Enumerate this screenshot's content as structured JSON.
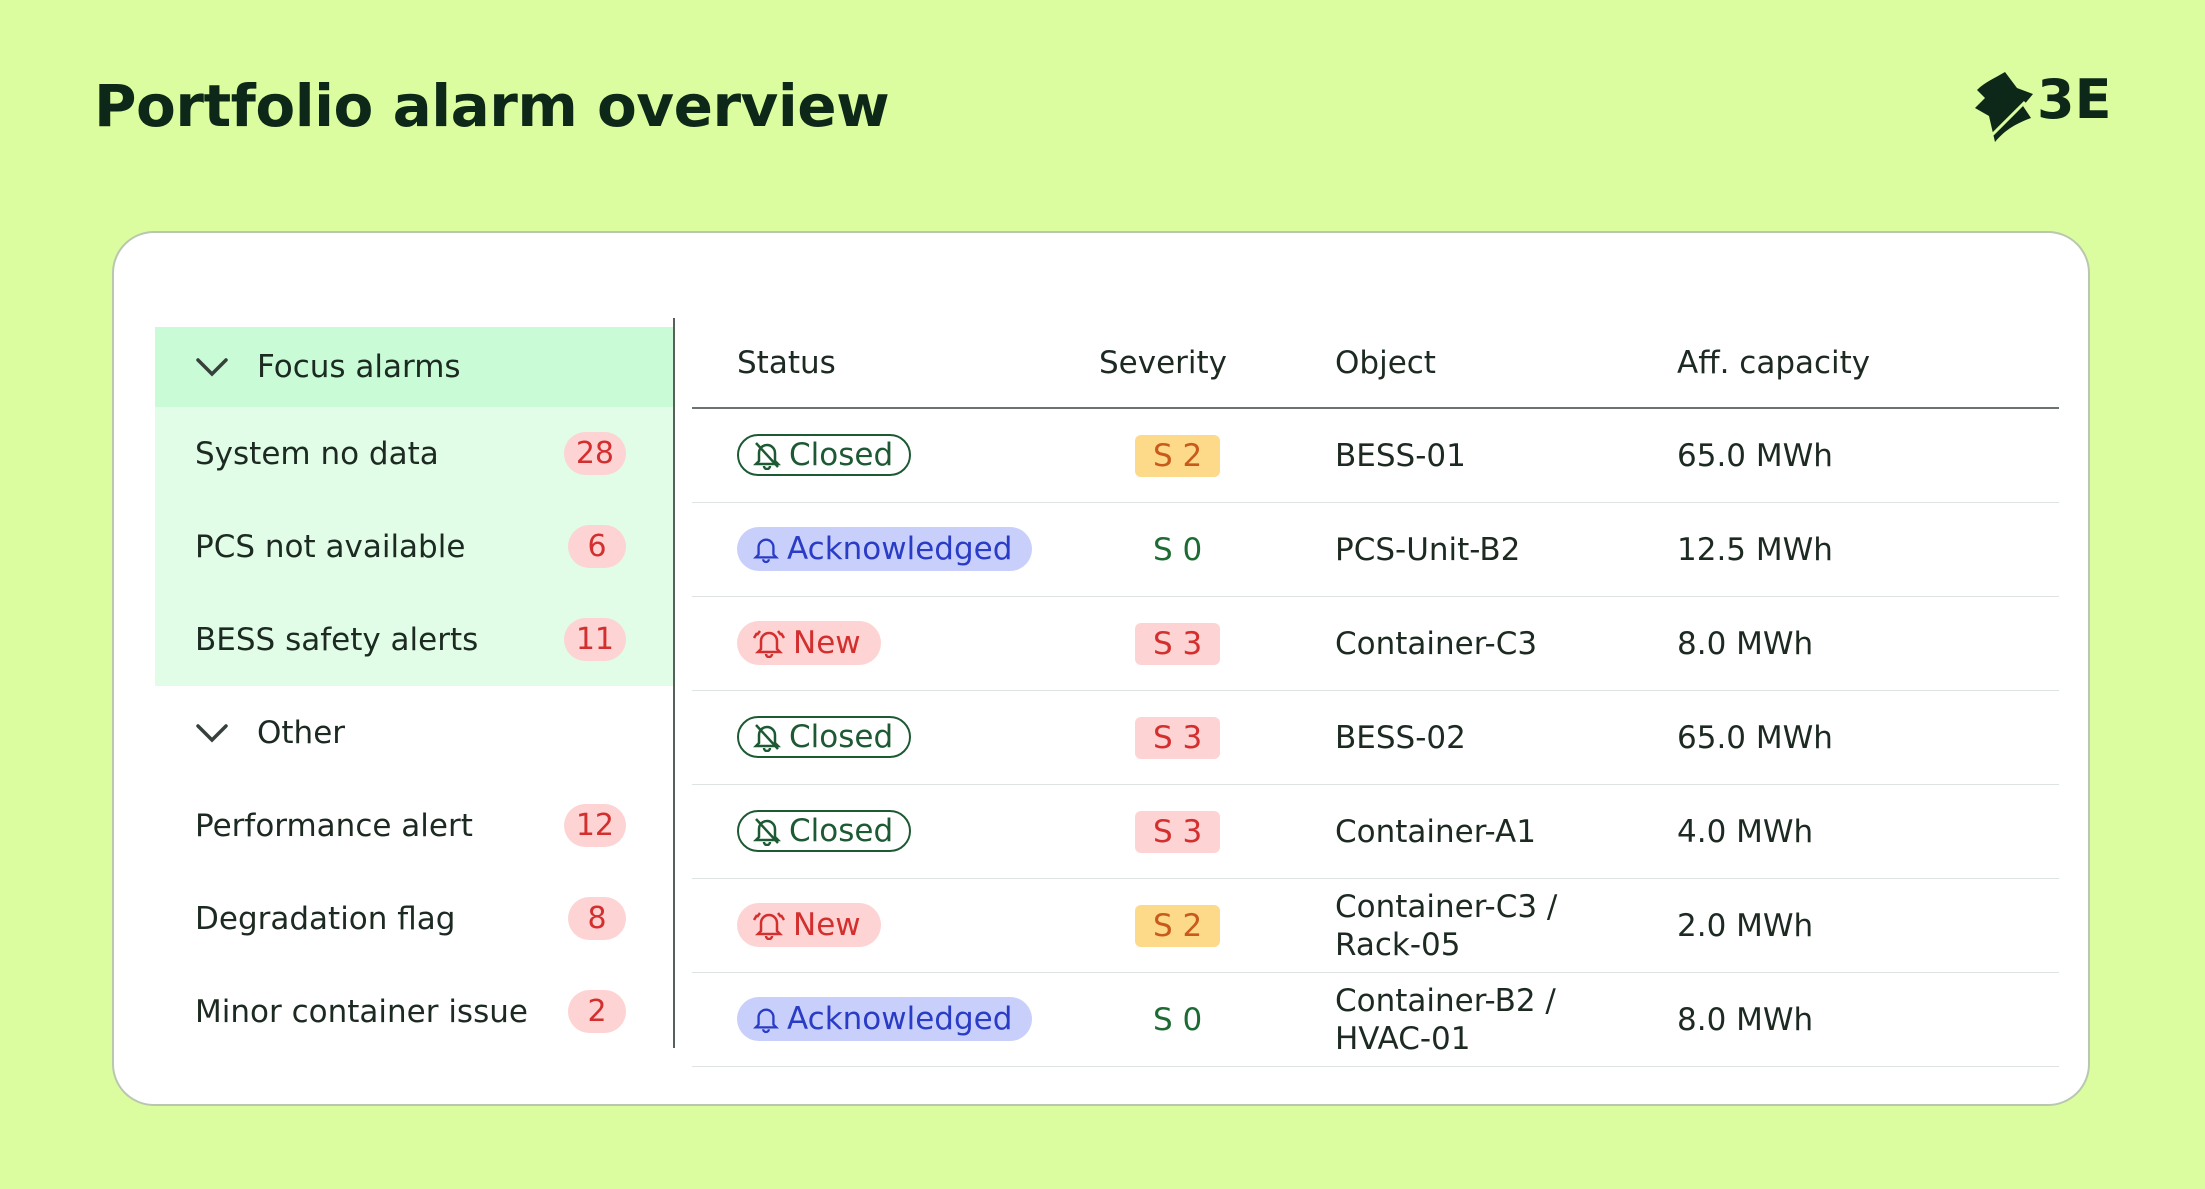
{
  "header": {
    "title": "Portfolio alarm overview",
    "logo": "3E"
  },
  "sidebar": {
    "groups": [
      {
        "label": "Focus alarms",
        "items": [
          {
            "label": "System no data",
            "count": 28
          },
          {
            "label": "PCS not available",
            "count": 6
          },
          {
            "label": "BESS safety alerts",
            "count": 11
          }
        ]
      },
      {
        "label": "Other",
        "items": [
          {
            "label": "Performance alert",
            "count": 12
          },
          {
            "label": "Degradation flag",
            "count": 8
          },
          {
            "label": "Minor container issue",
            "count": 2
          }
        ]
      }
    ]
  },
  "table": {
    "columns": [
      "Status",
      "Severity",
      "Object",
      "Aff. capacity"
    ],
    "rows": [
      [
        "Closed",
        "S 2",
        "BESS-01",
        "65.0 MWh"
      ],
      [
        "Acknowledged",
        "S 0",
        "PCS-Unit-B2",
        "12.5 MWh"
      ],
      [
        "New",
        "S 3",
        "Container-C3",
        "8.0 MWh"
      ],
      [
        "Closed",
        "S 3",
        "BESS-02",
        "65.0 MWh"
      ],
      [
        "Closed",
        "S 3",
        "Container-A1",
        "4.0 MWh"
      ],
      [
        "New",
        "S 2",
        "Container-C3 / Rack-05",
        "2.0 MWh"
      ],
      [
        "Acknowledged",
        "S 0",
        "Container-B2 / HVAC-01",
        "8.0 MWh"
      ]
    ]
  }
}
